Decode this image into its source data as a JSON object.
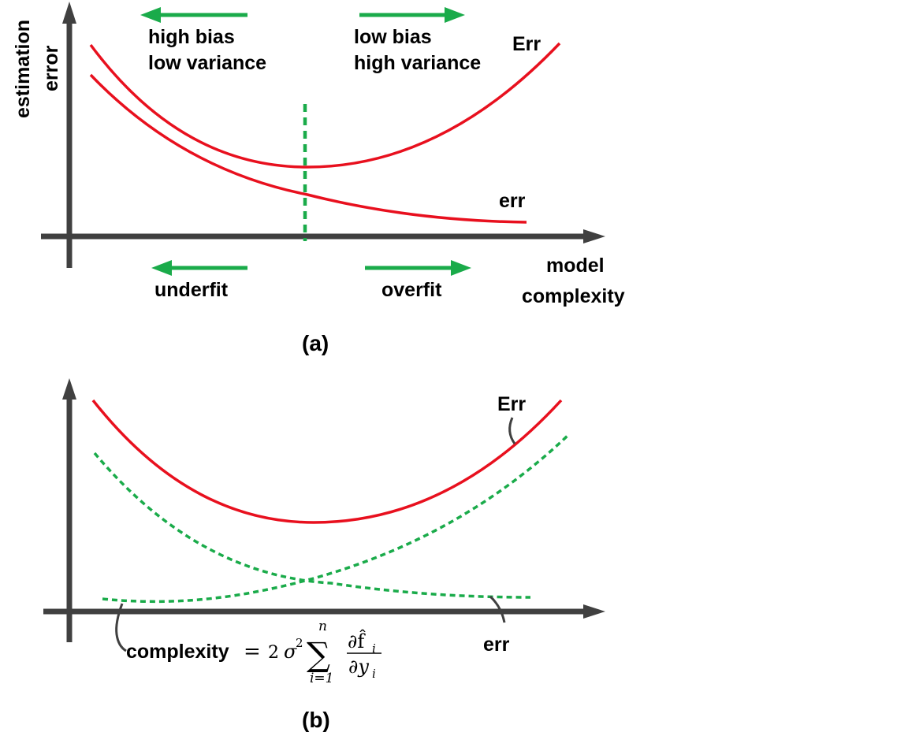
{
  "colors": {
    "axis": "#404040",
    "curve_red": "#e8101e",
    "curve_green": "#1aab4a",
    "text": "#000000"
  },
  "panel_a": {
    "y_axis_label": [
      "estimation",
      "error"
    ],
    "x_axis_label": [
      "model",
      "complexity"
    ],
    "arrow_left_top": [
      "high bias",
      "low variance"
    ],
    "arrow_right_top": [
      "low bias",
      "high variance"
    ],
    "arrow_left_bottom": "underfit",
    "arrow_right_bottom": "overfit",
    "curve_Err_label": "Err",
    "curve_err_label": "err",
    "caption": "(a)"
  },
  "panel_b": {
    "curve_Err_label": "Err",
    "curve_err_label": "err",
    "formula_word": "complexity",
    "formula_equals": "=",
    "formula_coef": "2",
    "formula_sigma": "σ",
    "formula_sigma_exp": "2",
    "formula_sum": "∑",
    "formula_sum_upper": "n",
    "formula_sum_lower": "i=1",
    "formula_numer": "∂f̂",
    "formula_numer_sub": "i",
    "formula_denom": "∂y",
    "formula_denom_sub": "i",
    "caption": "(b)"
  }
}
